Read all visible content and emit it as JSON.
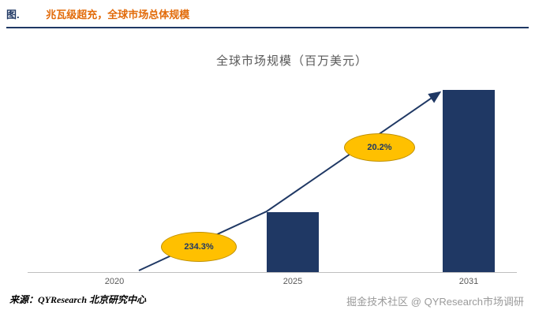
{
  "header": {
    "prefix": "图.",
    "title": "兆瓦级超充，全球市场总体规模"
  },
  "chart_data": {
    "type": "bar",
    "title": "全球市场规模（百万美元）",
    "categories": [
      "2020",
      "2025",
      "2031"
    ],
    "values": [
      0,
      33,
      100
    ],
    "values_basis": "relative heights in % of tallest bar; no numeric y-axis labels shown",
    "bar_color": "#1F3864",
    "annotations": [
      "234.3%",
      "20.2%"
    ],
    "grid": false,
    "legend": "none",
    "trend_arrow": true
  },
  "footer": {
    "source": "来源：QYResearch 北京研究中心",
    "watermark": "掘金技术社区 @ QYResearch市场调研"
  },
  "colors": {
    "navy": "#1F3864",
    "orange": "#E26B0A",
    "gold": "#FFC000",
    "gold_border": "#BF9000",
    "axis_gray": "#BFBFBF",
    "title_gray": "#595959",
    "watermark_gray": "#9A9A9A"
  }
}
